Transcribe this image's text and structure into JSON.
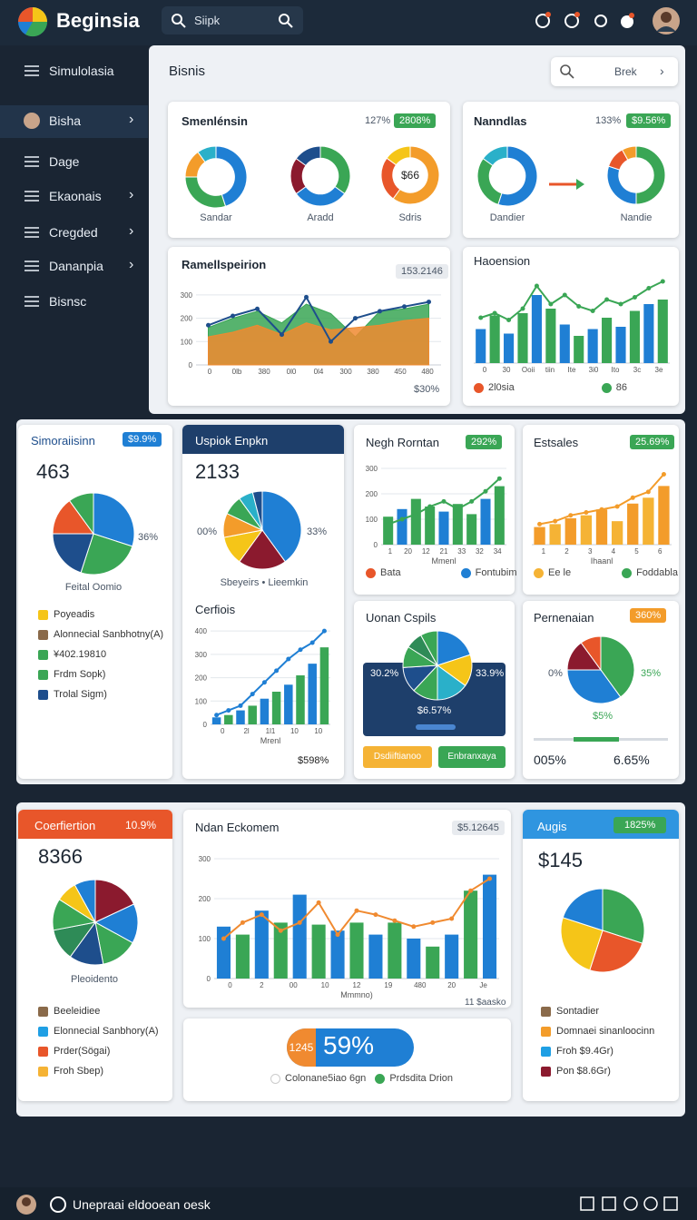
{
  "app": {
    "name": "Beginsia",
    "search": "Siipk"
  },
  "sidebar": [
    "Simulolasia",
    "Bisha",
    "Dage",
    "Ekaonais",
    "Cregded",
    "Dananpia",
    "Bisnsc"
  ],
  "panel": {
    "title": "Bisnis",
    "search": "Brek"
  },
  "smen": {
    "title": "Smenlénsin",
    "stat": "127%",
    "badge": "2808%",
    "donuts": [
      {
        "label": "Sandar",
        "chart": {
          "type": "donut",
          "values": [
            45,
            30,
            15,
            10
          ],
          "colors": [
            "#1f7fd4",
            "#3aa655",
            "#f39c2a",
            "#2ab0c9"
          ]
        }
      },
      {
        "label": "Aradd",
        "chart": {
          "type": "donut",
          "values": [
            35,
            30,
            20,
            15
          ],
          "colors": [
            "#3aa655",
            "#1f7fd4",
            "#8b1a2e",
            "#1e4e8c"
          ]
        }
      },
      {
        "label": "Sdris",
        "center": "$66",
        "chart": {
          "type": "donut",
          "values": [
            60,
            25,
            15
          ],
          "colors": [
            "#f39c2a",
            "#e8562a",
            "#f5c518"
          ]
        }
      }
    ]
  },
  "nann": {
    "title": "Nanndlas",
    "stat": "133%",
    "badge": "$9.56%",
    "donuts": [
      {
        "label": "Dandier",
        "chart": {
          "type": "donut",
          "values": [
            55,
            30,
            15
          ],
          "colors": [
            "#1f7fd4",
            "#3aa655",
            "#2ab0c9"
          ]
        }
      },
      {
        "label": "Nandie",
        "chart": {
          "type": "donut",
          "values": [
            50,
            30,
            12,
            8
          ],
          "colors": [
            "#3aa655",
            "#1f7fd4",
            "#e8562a",
            "#f39c2a"
          ]
        }
      }
    ]
  },
  "ramel": {
    "title": "Ramellspeirion",
    "badge": "153.2146",
    "footer": "$30%",
    "chart": {
      "type": "combo",
      "ylim": [
        0,
        350
      ],
      "yticks": [
        0,
        100,
        200,
        300
      ],
      "xlabels": [
        "0",
        "0lb",
        "380",
        "0l0",
        "0l4",
        "300",
        "380",
        "450",
        "480"
      ],
      "series": [
        {
          "kind": "area",
          "color": "#3aa655",
          "values": [
            160,
            200,
            230,
            180,
            260,
            220,
            120,
            230,
            240,
            260
          ]
        },
        {
          "kind": "area",
          "color": "#f08a30",
          "values": [
            120,
            140,
            170,
            130,
            180,
            150,
            160,
            170,
            190,
            200
          ]
        },
        {
          "kind": "line",
          "color": "#1e4e8c",
          "values": [
            170,
            210,
            240,
            130,
            290,
            100,
            200,
            230,
            250,
            270
          ]
        }
      ]
    }
  },
  "haoe": {
    "title": "Haoension",
    "chart": {
      "type": "combo",
      "ylim": [
        0,
        400
      ],
      "xlabels": [
        "0",
        "30",
        "Ooii",
        "tiin",
        "Ite",
        "3i0",
        "Ito",
        "3c",
        "3e"
      ],
      "series": [
        {
          "kind": "bar",
          "colors": [
            "#1f7fd4",
            "#3aa655"
          ],
          "values": [
            150,
            210,
            130,
            220,
            300,
            240,
            170,
            120,
            150,
            200,
            160,
            230,
            260,
            280
          ]
        },
        {
          "kind": "line",
          "color": "#3aa655",
          "values": [
            200,
            220,
            190,
            240,
            340,
            260,
            300,
            250,
            230,
            280,
            260,
            290,
            330,
            360
          ]
        }
      ]
    },
    "legend": [
      {
        "text": "2l0sia",
        "color": "#e8562a"
      },
      {
        "text": "86",
        "color": "#3aa655"
      }
    ]
  },
  "simor": {
    "title": "Simoraiisinn",
    "badge": "$9.9%",
    "stat": "463",
    "pct": "36%",
    "caption": "Feital Oomio",
    "chart": {
      "type": "pie",
      "values": [
        30,
        25,
        20,
        15,
        10
      ],
      "colors": [
        "#1f7fd4",
        "#3aa655",
        "#1e4e8c",
        "#e8562a",
        "#3aa655"
      ]
    },
    "list": [
      {
        "text": "Poyeadis",
        "color": "#f5c518"
      },
      {
        "text": "Alonnecial Sanbhotny(A)",
        "color": "#8a6a4a"
      },
      {
        "text": "¥402.19810",
        "color": "#3aa655"
      },
      {
        "text": "Frdm Sopk)",
        "color": "#3aa655"
      },
      {
        "text": "Trolal Sigm)",
        "color": "#1e4e8c"
      }
    ]
  },
  "uspiok": {
    "title": "Uspiok Enpkn",
    "stat": "2133",
    "left": "00%",
    "right": "33%",
    "caption": "Sbeyeirs • Lieemkin",
    "chart": {
      "type": "pie",
      "values": [
        40,
        20,
        12,
        10,
        8,
        6,
        4
      ],
      "colors": [
        "#1f7fd4",
        "#8b1a2e",
        "#f5c518",
        "#f39c2a",
        "#3aa655",
        "#2ab0c9",
        "#1e4e8c"
      ]
    },
    "sub": {
      "title": "Cerfiois",
      "footer": "$598%",
      "chart": {
        "type": "combo",
        "ylim": [
          0,
          420
        ],
        "yticks": [
          0,
          100,
          200,
          300,
          400
        ],
        "xlabels": [
          "0",
          "2l",
          "1l1",
          "10",
          "10"
        ],
        "xtitle": "Mrenl",
        "series": [
          {
            "kind": "bar",
            "colors": [
              "#1f7fd4",
              "#3aa655"
            ],
            "values": [
              30,
              40,
              60,
              80,
              110,
              140,
              170,
              210,
              260,
              330
            ]
          },
          {
            "kind": "line",
            "color": "#1f7fd4",
            "values": [
              40,
              60,
              80,
              130,
              180,
              230,
              280,
              320,
              350,
              400
            ]
          }
        ]
      }
    }
  },
  "negh": {
    "title": "Negh Rorntan",
    "badge": "292%",
    "chart": {
      "type": "combo",
      "ylim": [
        0,
        300
      ],
      "yticks": [
        0,
        100,
        200,
        300
      ],
      "xlabels": [
        "1",
        "20",
        "12",
        "21",
        "33",
        "32",
        "34"
      ],
      "xtitle": "Mmenl",
      "series": [
        {
          "kind": "bar",
          "colors": [
            "#3aa655",
            "#1f7fd4",
            "#3aa655"
          ],
          "values": [
            110,
            140,
            180,
            150,
            130,
            160,
            120,
            180,
            230
          ]
        },
        {
          "kind": "line",
          "color": "#3aa655",
          "values": [
            80,
            100,
            120,
            150,
            170,
            140,
            170,
            210,
            260
          ]
        }
      ]
    },
    "legend": [
      {
        "text": "Bata",
        "color": "#e8562a"
      },
      {
        "text": "Fontubim",
        "color": "#1f7fd4"
      }
    ]
  },
  "ests": {
    "title": "Estsales",
    "badge": "25.69%",
    "chart": {
      "type": "combo",
      "ylim": [
        0,
        260
      ],
      "xlabels": [
        "1",
        "2",
        "3",
        "4",
        "5",
        "6"
      ],
      "xtitle": "Ihaanl",
      "series": [
        {
          "kind": "bar",
          "colors": [
            "#f39c2a",
            "#f5b335"
          ],
          "values": [
            60,
            70,
            90,
            100,
            120,
            80,
            140,
            160,
            200
          ]
        },
        {
          "kind": "line",
          "color": "#f39c2a",
          "values": [
            70,
            80,
            100,
            110,
            120,
            130,
            160,
            180,
            240
          ]
        }
      ]
    },
    "legend": [
      {
        "text": "Ee le",
        "color": "#f5b335"
      },
      {
        "text": "Foddabla",
        "color": "#3aa655"
      }
    ]
  },
  "uonan": {
    "title": "Uonan Cspils",
    "left": "30.2%",
    "right": "33.9%",
    "center": "$6.57%",
    "buttons": [
      "Dsdiiftianoo",
      "Enbranxaya"
    ],
    "chart": {
      "type": "pie",
      "values": [
        20,
        15,
        15,
        12,
        12,
        10,
        8,
        8
      ],
      "colors": [
        "#1f7fd4",
        "#f5c518",
        "#2ab0c9",
        "#3aa655",
        "#1e4e8c",
        "#3aa655",
        "#2e8b57",
        "#3aa655"
      ]
    }
  },
  "pern": {
    "title": "Pernenaian",
    "badge": "360%",
    "left": "0%",
    "right": "35%",
    "below": "$5%",
    "min": "005%",
    "max": "6.65%",
    "chart": {
      "type": "pie",
      "values": [
        40,
        35,
        15,
        10
      ],
      "colors": [
        "#3aa655",
        "#1f7fd4",
        "#8b1a2e",
        "#e8562a"
      ]
    }
  },
  "coer": {
    "title": "Coerfiertion",
    "badge": "10.9%",
    "stat": "8366",
    "caption": "Pleoidento",
    "chart": {
      "type": "pie",
      "values": [
        18,
        15,
        14,
        13,
        12,
        12,
        8,
        8
      ],
      "colors": [
        "#8b1a2e",
        "#1f7fd4",
        "#3aa655",
        "#1e4e8c",
        "#2e8b57",
        "#3aa655",
        "#f5c518",
        "#1f7fd4"
      ]
    },
    "list": [
      {
        "text": "Beeleidiee",
        "color": "#8a6a4a"
      },
      {
        "text": "Elonnecial Sanbhory(A)",
        "color": "#1f9fe4"
      },
      {
        "text": "Prder(Sögai)",
        "color": "#e8562a"
      },
      {
        "text": "Froh Sbep)",
        "color": "#f5b335"
      }
    ]
  },
  "ndan": {
    "title": "Ndan Eckomem",
    "badge": "$5.12645",
    "footer": "11 $aasko",
    "chart": {
      "type": "combo",
      "ylim": [
        0,
        300
      ],
      "yticks": [
        0,
        100,
        200,
        300
      ],
      "xlabels": [
        "0",
        "2",
        "00",
        "10",
        "12",
        "19",
        "480",
        "20",
        "Je"
      ],
      "xtitle": "Mmmno)",
      "series": [
        {
          "kind": "bar",
          "colors": [
            "#1f7fd4",
            "#3aa655"
          ],
          "values": [
            130,
            110,
            170,
            140,
            210,
            135,
            120,
            140,
            110,
            140,
            100,
            80,
            110,
            220,
            260
          ]
        },
        {
          "kind": "line",
          "color": "#f08a30",
          "values": [
            100,
            140,
            160,
            120,
            140,
            190,
            110,
            170,
            160,
            145,
            130,
            140,
            150,
            220,
            250
          ]
        }
      ]
    }
  },
  "pill": {
    "left": "1245",
    "value": "59%",
    "legend": [
      {
        "text": "Colonane5iao 6gn",
        "color": "#ffffff"
      },
      {
        "text": "Prdsdita Drion",
        "color": "#3aa655"
      }
    ]
  },
  "augis": {
    "title": "Augis",
    "badge": "1825%",
    "stat": "$145",
    "chart": {
      "type": "pie",
      "values": [
        30,
        25,
        25,
        20
      ],
      "colors": [
        "#3aa655",
        "#e8562a",
        "#f5c518",
        "#1f7fd4"
      ]
    },
    "list": [
      {
        "text": "Sontadier",
        "color": "#8a6a4a"
      },
      {
        "text": "Domnaei sinanloocinn",
        "color": "#f39c2a"
      },
      {
        "text": "Froh $9.4Gr)",
        "color": "#1f9fe4"
      },
      {
        "text": "Pon $8.6Gr)",
        "color": "#8b1a2e"
      }
    ]
  },
  "footer": {
    "text": "Unepraai eldooean oesk"
  }
}
